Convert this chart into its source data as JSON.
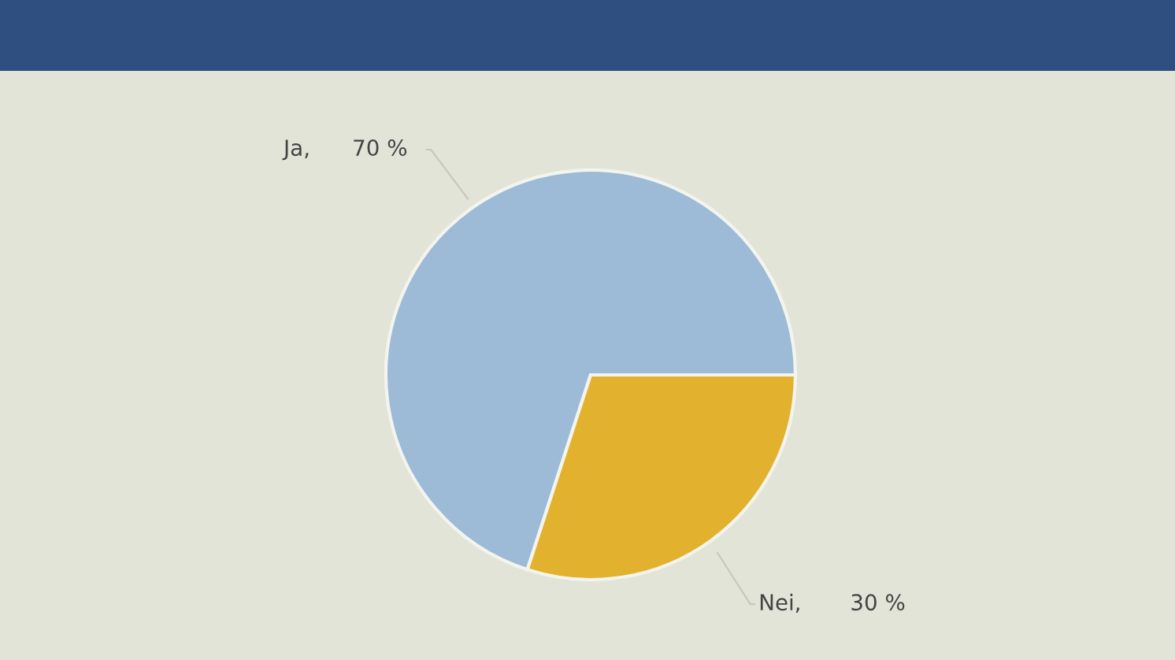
{
  "chart_data": {
    "type": "pie",
    "categories": [
      "Ja",
      "Nei"
    ],
    "values": [
      70,
      30
    ],
    "value_labels": [
      ",      70 %",
      ",       30 %"
    ],
    "colors": [
      "#9dbbd6",
      "#e2b22e"
    ]
  }
}
